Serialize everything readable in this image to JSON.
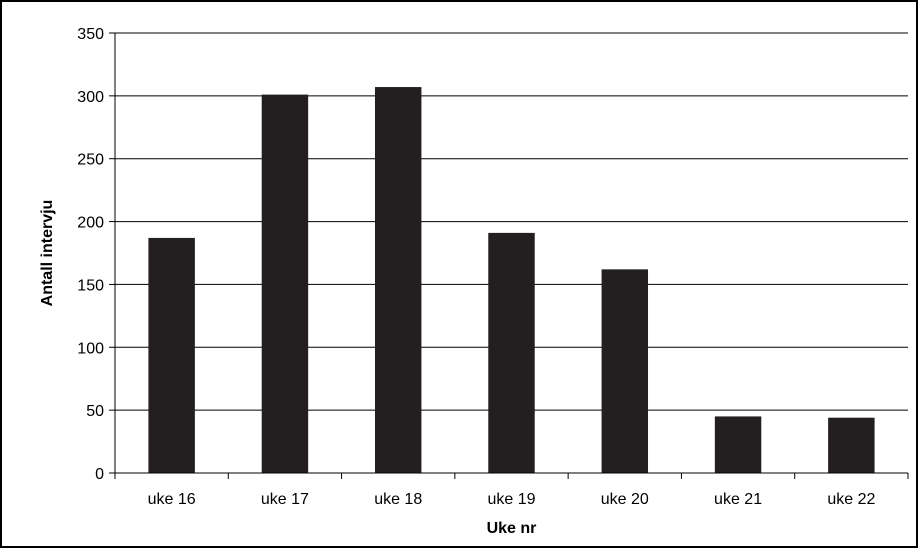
{
  "chart_data": {
    "type": "bar",
    "title": "",
    "xlabel": "Uke nr",
    "ylabel": "Antall intervju",
    "categories": [
      "uke 16",
      "uke 17",
      "uke 18",
      "uke 19",
      "uke 20",
      "uke 21",
      "uke 22"
    ],
    "values": [
      187,
      301,
      307,
      191,
      162,
      45,
      44
    ],
    "ylim": [
      0,
      350
    ],
    "yticks": [
      0,
      50,
      100,
      150,
      200,
      250,
      300,
      350
    ],
    "grid": true,
    "legend": "none",
    "bar_color": "#231f20",
    "grid_color": "#000000"
  }
}
